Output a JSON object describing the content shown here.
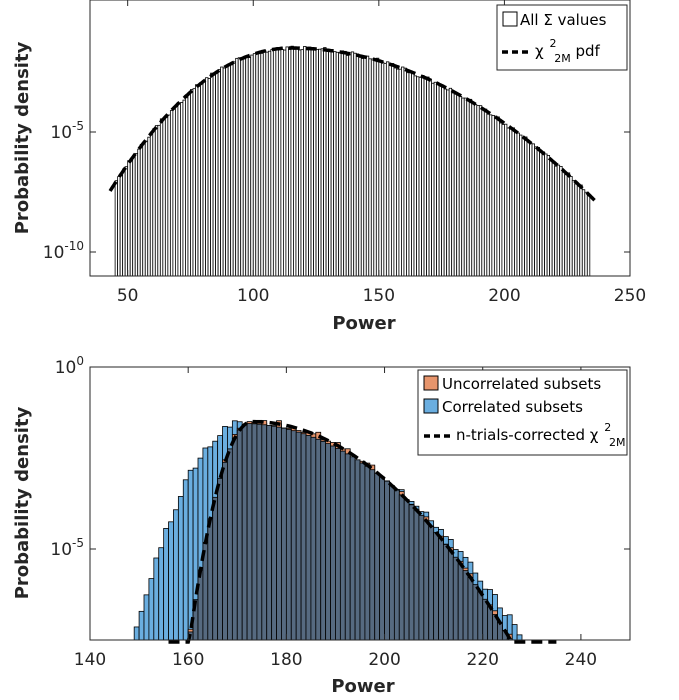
{
  "chart_data": [
    {
      "type": "bar",
      "xlabel": "Power",
      "ylabel": "Probability density",
      "yscale": "log",
      "xlim": [
        35,
        250
      ],
      "ylim_exponent": [
        -11,
        0.5
      ],
      "x_ticks": [
        "50",
        "100",
        "150",
        "200",
        "250"
      ],
      "x_tick_values": [
        50,
        100,
        150,
        200,
        250
      ],
      "y_ticks": [
        {
          "base": "10",
          "exp": "-5",
          "value": -5
        },
        {
          "base": "10",
          "exp": "-10",
          "value": -10
        }
      ],
      "bin_range": [
        45,
        234
      ],
      "series": [
        {
          "name": "All Σ values",
          "kind": "histogram",
          "color": "#ffffff",
          "curve": {
            "peak_x": 115,
            "peak_log10": -1.5,
            "left_width": 29.5,
            "right_width": 48
          }
        },
        {
          "name": "χ²2M pdf",
          "kind": "dashed-line",
          "color": "#000000",
          "curve": {
            "start_x": 43,
            "end_x": 236,
            "peak_x": 115,
            "peak_log10": -1.5,
            "left_width": 29.5,
            "right_width": 48
          }
        }
      ],
      "legend": {
        "placement": "top-right",
        "items": [
          {
            "text": "All Σ values",
            "sup": "",
            "sub": ""
          },
          {
            "text": "χ",
            "sup": "2",
            "sub": "2M",
            "suffix": " pdf"
          }
        ]
      },
      "grid": false
    },
    {
      "type": "bar",
      "xlabel": "Power",
      "ylabel": "Probability density",
      "yscale": "log",
      "xlim": [
        140,
        250
      ],
      "ylim_exponent": [
        -7.5,
        0
      ],
      "x_ticks": [
        "140",
        "160",
        "180",
        "200",
        "220",
        "240"
      ],
      "x_tick_values": [
        140,
        160,
        180,
        200,
        220,
        240
      ],
      "y_ticks": [
        {
          "base": "10",
          "exp": "0",
          "value": 0
        },
        {
          "base": "10",
          "exp": "-5",
          "value": -5
        }
      ],
      "series": [
        {
          "name": "Uncorrelated subsets",
          "kind": "histogram",
          "color": "#e7956c",
          "range": [
            158,
            228
          ],
          "curve": {
            "peak_x": 173,
            "peak_log10": -1.5,
            "left_width": 5.2,
            "right_width": 21.5
          }
        },
        {
          "name": "Correlated subsets",
          "kind": "histogram",
          "color": "#6aaee0",
          "range": [
            148,
            233
          ],
          "curve": {
            "peak_x": 171,
            "peak_log10": -1.55,
            "left_width": 9,
            "right_width": 23.5
          }
        },
        {
          "name": "n-trials-corrected χ²2M",
          "kind": "dashed-line",
          "color": "#000000",
          "curve": {
            "start_x": 156,
            "end_x": 235,
            "peak_x": 173,
            "peak_log10": -1.5,
            "left_width": 5.2,
            "right_width": 21.5
          }
        }
      ],
      "legend": {
        "placement": "top-right",
        "items": [
          {
            "text": "Uncorrelated subsets",
            "sup": "",
            "sub": ""
          },
          {
            "text": "Correlated subsets",
            "sup": "",
            "sub": ""
          },
          {
            "text": "n-trials-corrected χ",
            "sup": "2",
            "sub": "2M",
            "suffix": ""
          }
        ]
      },
      "grid": false
    }
  ]
}
